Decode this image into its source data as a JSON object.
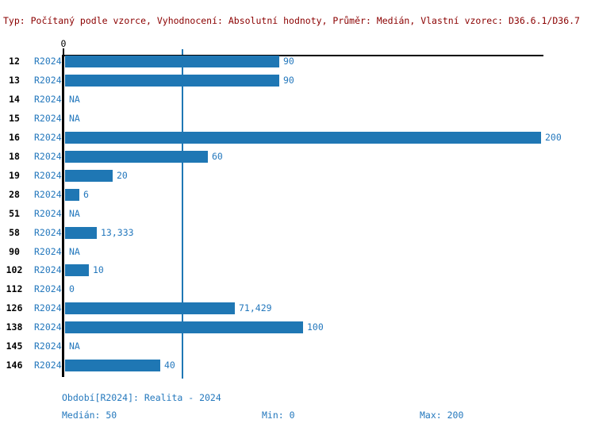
{
  "header": {
    "info_text": "Typ: Počítaný podle vzorce, Vyhodnocení: Absolutní hodnoty, Průměr: Medián, Vlastní vzorec: D36.6.1/D36.7"
  },
  "colors": {
    "bar_blue": "#1f77b4",
    "text_blue": "#2478bd",
    "info_red": "#8b0000",
    "axis_black": "#000000"
  },
  "chart_data": {
    "type": "bar",
    "orientation": "horizontal",
    "title": "",
    "xlabel": "",
    "ylabel": "",
    "xlim": [
      0,
      200
    ],
    "x_tick_label": "0",
    "median_reference_value": 50,
    "grid": false,
    "rows": [
      {
        "id": "12",
        "period": "R2024",
        "value": 90,
        "label": "90"
      },
      {
        "id": "13",
        "period": "R2024",
        "value": 90,
        "label": "90"
      },
      {
        "id": "14",
        "period": "R2024",
        "value": null,
        "label": "NA"
      },
      {
        "id": "15",
        "period": "R2024",
        "value": null,
        "label": "NA"
      },
      {
        "id": "16",
        "period": "R2024",
        "value": 200,
        "label": "200"
      },
      {
        "id": "18",
        "period": "R2024",
        "value": 60,
        "label": "60"
      },
      {
        "id": "19",
        "period": "R2024",
        "value": 20,
        "label": "20"
      },
      {
        "id": "28",
        "period": "R2024",
        "value": 6,
        "label": "6"
      },
      {
        "id": "51",
        "period": "R2024",
        "value": null,
        "label": "NA"
      },
      {
        "id": "58",
        "period": "R2024",
        "value": 13.333,
        "label": "13,333"
      },
      {
        "id": "90",
        "period": "R2024",
        "value": null,
        "label": "NA"
      },
      {
        "id": "102",
        "period": "R2024",
        "value": 10,
        "label": "10"
      },
      {
        "id": "112",
        "period": "R2024",
        "value": 0,
        "label": "0"
      },
      {
        "id": "126",
        "period": "R2024",
        "value": 71.429,
        "label": "71,429"
      },
      {
        "id": "138",
        "period": "R2024",
        "value": 100,
        "label": "100"
      },
      {
        "id": "145",
        "period": "R2024",
        "value": null,
        "label": "NA"
      },
      {
        "id": "146",
        "period": "R2024",
        "value": 40,
        "label": "40"
      }
    ]
  },
  "footer": {
    "period_label": "Období[R2024]: Realita - 2024",
    "median_label": "Medián: 50",
    "min_label": "Min: 0",
    "max_label": "Max: 200"
  }
}
